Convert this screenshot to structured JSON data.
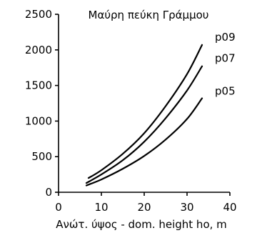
{
  "chart_data": {
    "type": "line",
    "title": "Μαύρη πεύκη Γράμμου",
    "xlabel": "Ανώτ. ύψος - dom. height ho, m",
    "ylabel": "",
    "xlim": [
      0,
      40
    ],
    "ylim": [
      0,
      2500
    ],
    "x_ticks": [
      "0",
      "10",
      "20",
      "30",
      "40"
    ],
    "y_ticks": [
      "0",
      "500",
      "1000",
      "1500",
      "2000",
      "2500"
    ],
    "grid": false,
    "series": [
      {
        "name": "p05",
        "x": [
          6.5,
          10,
          15,
          20,
          25,
          30,
          33.5
        ],
        "y": [
          95,
          180,
          330,
          510,
          740,
          1030,
          1320
        ]
      },
      {
        "name": "p07",
        "x": [
          6.5,
          10,
          15,
          20,
          25,
          30,
          33.5
        ],
        "y": [
          130,
          250,
          450,
          710,
          1040,
          1430,
          1770
        ]
      },
      {
        "name": "p09",
        "x": [
          7,
          10,
          15,
          20,
          25,
          30,
          33.5
        ],
        "y": [
          200,
          310,
          540,
          830,
          1210,
          1660,
          2070
        ]
      }
    ]
  }
}
